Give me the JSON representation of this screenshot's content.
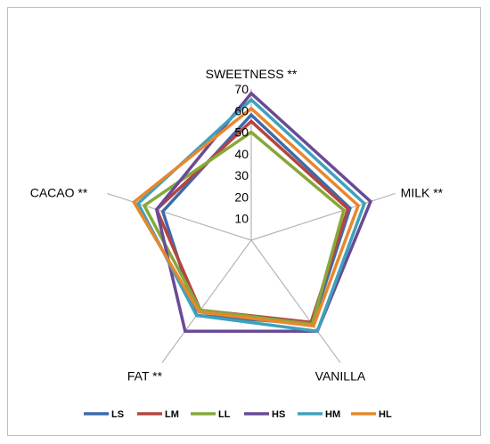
{
  "chart_data": {
    "type": "radar",
    "title": "",
    "axes": [
      "SWEETNESS **",
      "MILK **",
      "VANILLA",
      "FAT **",
      "CACAO **"
    ],
    "ticks": [
      10,
      20,
      30,
      40,
      50,
      60,
      70
    ],
    "rlim": [
      0,
      70
    ],
    "gridlines": false,
    "legend_position": "bottom",
    "series": [
      {
        "name": "LS",
        "color": "#3c6aad",
        "values": [
          58,
          48,
          48,
          43,
          43
        ]
      },
      {
        "name": "LM",
        "color": "#b5443f",
        "values": [
          55,
          47,
          47,
          40,
          46
        ]
      },
      {
        "name": "LL",
        "color": "#86a83a",
        "values": [
          50,
          45,
          48,
          40,
          52
        ]
      },
      {
        "name": "HS",
        "color": "#6a4a95",
        "values": [
          68,
          58,
          52,
          52,
          46
        ]
      },
      {
        "name": "HM",
        "color": "#3ea1bd",
        "values": [
          65,
          55,
          52,
          43,
          55
        ]
      },
      {
        "name": "HL",
        "color": "#e8872d",
        "values": [
          61,
          52,
          49,
          41,
          57
        ]
      }
    ]
  }
}
